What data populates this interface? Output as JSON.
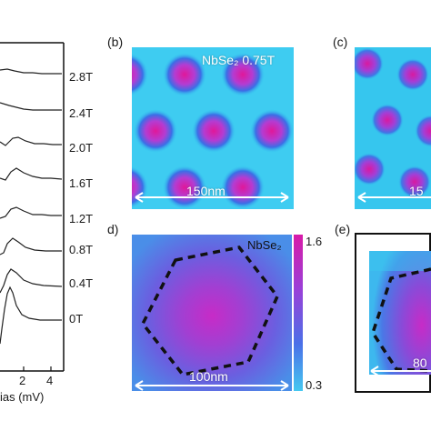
{
  "panel_a": {
    "field_labels": [
      "2.8T",
      "2.4T",
      "2.0T",
      "1.6T",
      "1.2T",
      "0.8T",
      "0.4T",
      "0T"
    ],
    "x_ticks": [
      "2",
      "4"
    ],
    "x_label": "ias (mV)"
  },
  "panel_b": {
    "letter": "(b)",
    "title": "NbSe₂ 0.75T",
    "scale_label": "150nm"
  },
  "panel_c": {
    "letter": "(c)",
    "scale_label": "15"
  },
  "panel_d": {
    "letter": "d)",
    "title": "NbSe₂",
    "scale_label": "100nm",
    "colorbar_max": "1.6",
    "colorbar_min": "0.3"
  },
  "panel_e": {
    "letter": "(e)",
    "scale_label": "80"
  },
  "colors": {
    "map_bg": "#33c8f0",
    "vortex_core": "#e0189a",
    "map_d_edge": "#4a7ee8",
    "map_d_center": "#c72bc7"
  }
}
